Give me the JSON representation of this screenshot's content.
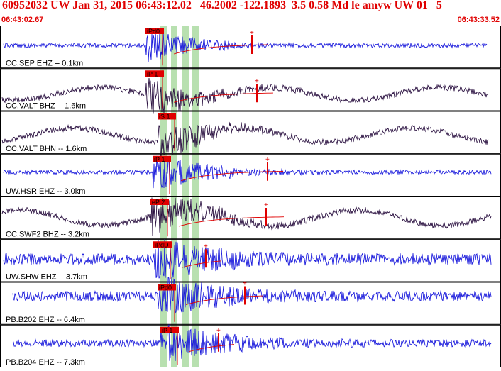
{
  "header": {
    "title": "60952032 UW Jan 31, 2015 06:43:12.02   46.2002 -122.1893  3.5 0.58 Md le amyw UW 01   5",
    "start_time": "06:43:02.67",
    "end_time": "06:43:33.52"
  },
  "colors": {
    "header_text": "#e00000",
    "trace_blue": "#1a1adc",
    "trace_dark": "#2a1040",
    "pick_red": "#e00000",
    "window_green": "#b8e0b0",
    "panel_border": "#000000"
  },
  "traces": [
    {
      "label": "CC.SEP EHZ -- 0.1km",
      "pick": "iPd0",
      "color": "trace_blue"
    },
    {
      "label": "CC.VALT BHZ -- 1.6km",
      "pick": "iP 1",
      "color": "trace_dark"
    },
    {
      "label": "CC.VALT BHN -- 1.6km",
      "pick": "iS 1",
      "color": "trace_dark"
    },
    {
      "label": "UW.HSR EHZ -- 3.0km",
      "pick": "iP 1",
      "color": "trace_blue"
    },
    {
      "label": "CC.SWF2 BHZ -- 3.2km",
      "pick": "eP 2",
      "color": "trace_dark"
    },
    {
      "label": "UW.SHW EHZ -- 3.7km",
      "pick": "iPdD",
      "color": "trace_blue"
    },
    {
      "label": "PB.B202 EHZ -- 6.4km",
      "pick": "iPd0",
      "color": "trace_blue"
    },
    {
      "label": "PB.B204 EHZ -- 7.3km",
      "pick": "iP 1",
      "color": "trace_blue"
    }
  ]
}
